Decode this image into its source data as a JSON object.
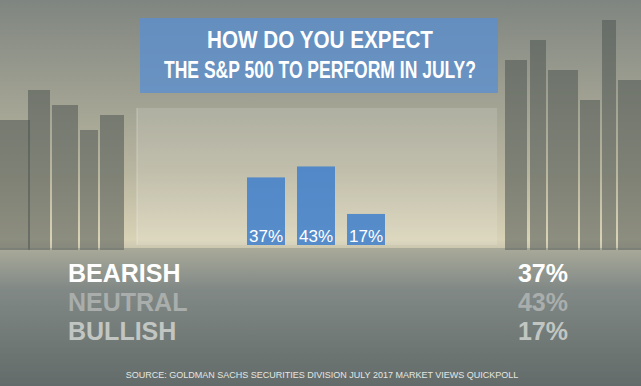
{
  "chart_data": {
    "type": "bar",
    "title": "HOW DO YOU EXPECT\nTHE S&P 500 TO PERFORM IN JULY?",
    "source": "SOURCE: GOLDMAN SACHS SECURITIES DIVISION JULY 2017 MARKET VIEWS QUICKPOLL",
    "categories": [
      "BEARISH",
      "NEUTRAL",
      "BULLISH"
    ],
    "values": [
      37,
      43,
      17
    ],
    "value_labels": [
      "37%",
      "43%",
      "17%"
    ],
    "color": "#3f7fcc",
    "ylim": [
      0,
      75
    ],
    "yticks": [],
    "data_labels": true,
    "tick_labels": false,
    "grid": false
  }
}
